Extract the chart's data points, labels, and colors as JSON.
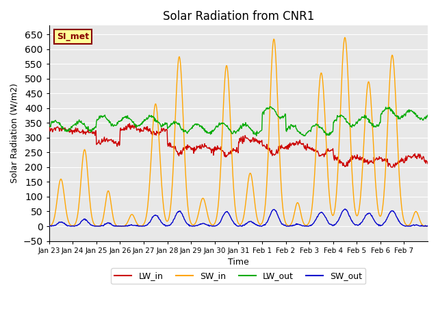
{
  "title": "Solar Radiation from CNR1",
  "xlabel": "Time",
  "ylabel": "Solar Radiation (W/m2)",
  "ylim": [
    -50,
    680
  ],
  "bg_color": "#e8e8e8",
  "grid_color": "white",
  "line_colors": {
    "LW_in": "#cc0000",
    "SW_in": "#ffa500",
    "LW_out": "#00aa00",
    "SW_out": "#0000cc"
  },
  "station_label": "SI_met",
  "station_label_bg": "#ffff99",
  "station_label_border": "#880000",
  "x_tick_labels": [
    "Jan 23",
    "Jan 24",
    "Jan 25",
    "Jan 26",
    "Jan 27",
    "Jan 28",
    "Jan 29",
    "Jan 30",
    "Jan 31",
    "Feb 1",
    "Feb 2",
    "Feb 3",
    "Feb 4",
    "Feb 5",
    "Feb 6",
    "Feb 7"
  ]
}
